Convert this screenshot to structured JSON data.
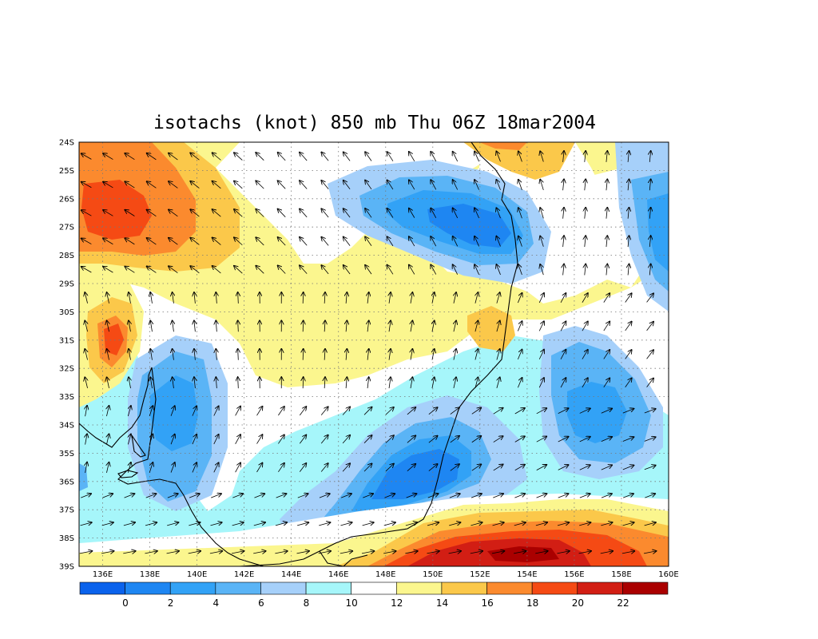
{
  "title": "isotachs (knot) 850 mb Thu 06Z 18mar2004",
  "map": {
    "type": "contour-with-vectors",
    "region": {
      "lon_range": [
        135,
        160
      ],
      "lat_range": [
        -39,
        -24
      ]
    },
    "lat_ticks": [
      "24S",
      "25S",
      "26S",
      "27S",
      "28S",
      "29S",
      "30S",
      "31S",
      "32S",
      "33S",
      "34S",
      "35S",
      "36S",
      "37S",
      "38S",
      "39S"
    ],
    "lon_ticks": [
      "136E",
      "138E",
      "140E",
      "142E",
      "144E",
      "146E",
      "148E",
      "150E",
      "152E",
      "154E",
      "156E",
      "158E",
      "160E"
    ],
    "grid": true,
    "vectors": true
  },
  "colorbar": {
    "labels": [
      "0",
      "2",
      "4",
      "6",
      "8",
      "10",
      "12",
      "14",
      "16",
      "18",
      "20",
      "22"
    ],
    "colors": [
      "#0a62ec",
      "#1e86f2",
      "#32a2f6",
      "#5ab4f6",
      "#a6d0fa",
      "#a6f6fa",
      "#ffffff",
      "#fbf68e",
      "#fbc84a",
      "#fb8a2e",
      "#f54a14",
      "#d21e14",
      "#aa0000"
    ]
  },
  "palette": {
    "c0": "#0a62ec",
    "c2": "#1e86f2",
    "c4": "#32a2f6",
    "c6": "#5ab4f6",
    "c8": "#a6d0fa",
    "c10": "#a6f6fa",
    "c12": "#ffffff",
    "c14": "#fbf68e",
    "c16": "#fbc84a",
    "c18": "#fb8a2e",
    "c20": "#f54a14",
    "c22": "#d21e14",
    "c24": "#aa0000"
  }
}
